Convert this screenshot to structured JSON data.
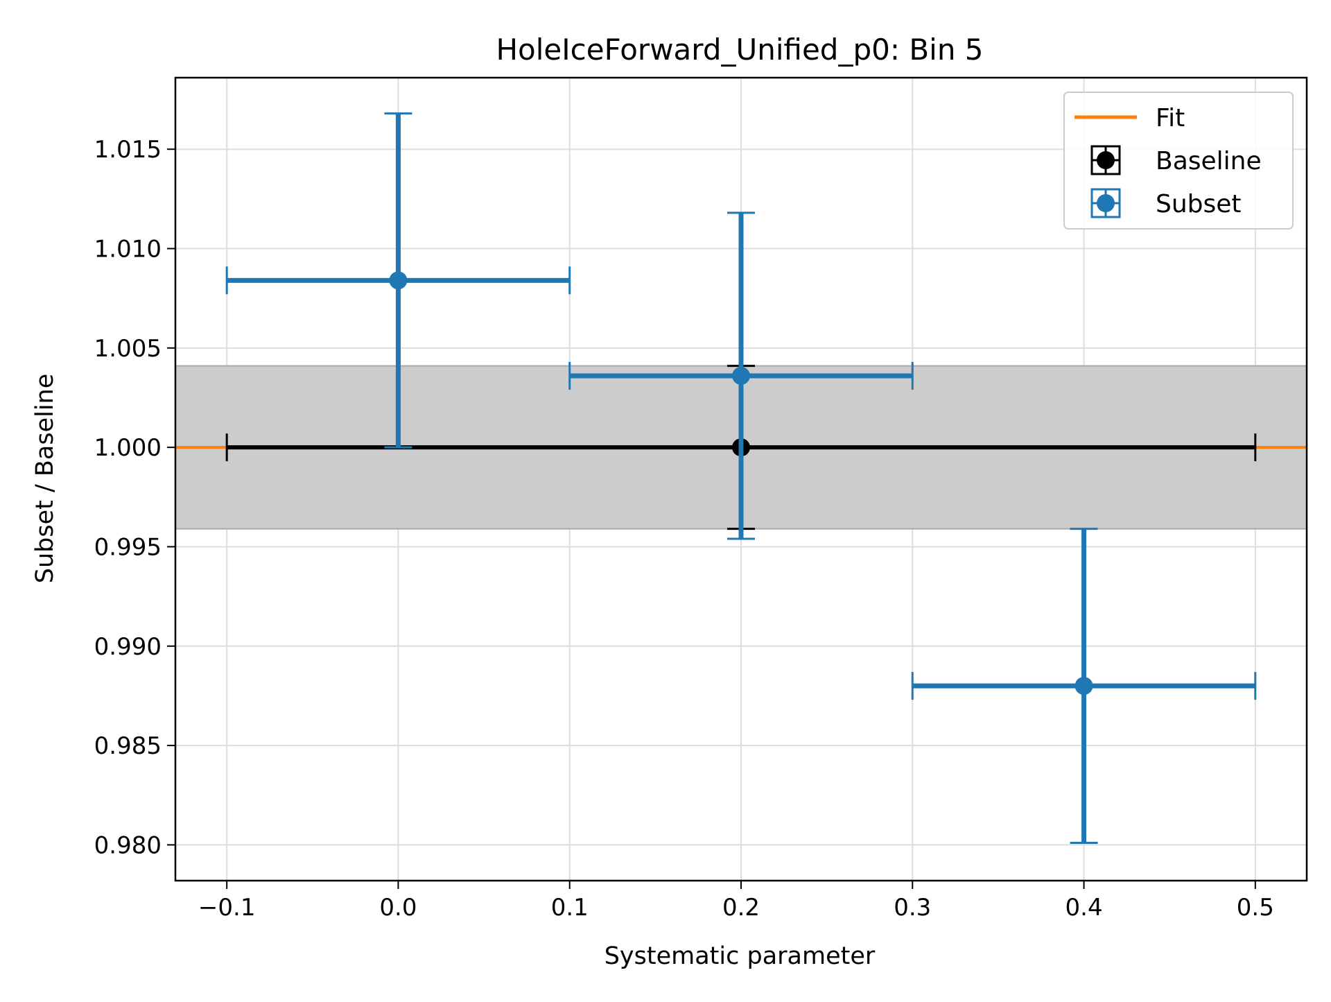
{
  "chart_data": {
    "type": "scatter",
    "title": "HoleIceForward_Unified_p0: Bin 5",
    "xlabel": "Systematic parameter",
    "ylabel": "Subset / Baseline",
    "xlim": [
      -0.13,
      0.53
    ],
    "ylim": [
      0.9782,
      1.0186
    ],
    "x_ticks": [
      -0.1,
      0.0,
      0.1,
      0.2,
      0.3,
      0.4,
      0.5
    ],
    "x_tick_labels": [
      "−0.1",
      "0.0",
      "0.1",
      "0.2",
      "0.3",
      "0.4",
      "0.5"
    ],
    "y_ticks": [
      0.98,
      0.985,
      0.99,
      0.995,
      1.0,
      1.005,
      1.01,
      1.015
    ],
    "y_tick_labels": [
      "0.980",
      "0.985",
      "0.990",
      "0.995",
      "1.000",
      "1.005",
      "1.010",
      "1.015"
    ],
    "grid": true,
    "legend_position": "top-right",
    "fit": {
      "name": "Fit",
      "color": "#ff7f0e",
      "value": 1.0,
      "band": [
        0.9959,
        1.0041
      ],
      "band_color": "#cccccc"
    },
    "series": [
      {
        "name": "Baseline",
        "color": "#000000",
        "points": [
          {
            "x": 0.2,
            "y": 1.0,
            "xerr": 0.3,
            "yerr": 0.0041
          }
        ]
      },
      {
        "name": "Subset",
        "color": "#1f77b4",
        "points": [
          {
            "x": 0.0,
            "y": 1.0084,
            "xerr": 0.1,
            "yerr": 0.0084
          },
          {
            "x": 0.2,
            "y": 1.0036,
            "xerr": 0.1,
            "yerr": 0.0082
          },
          {
            "x": 0.4,
            "y": 0.988,
            "xerr": 0.1,
            "yerr": 0.0079
          }
        ]
      }
    ]
  }
}
